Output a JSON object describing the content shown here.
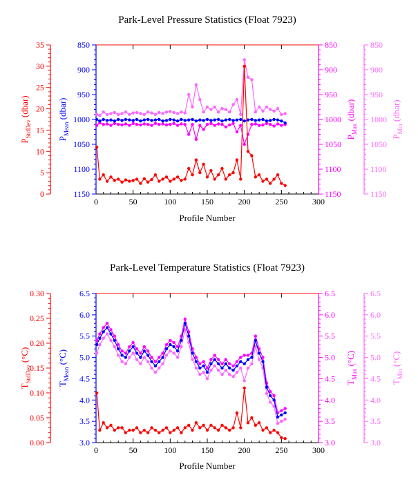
{
  "colors": {
    "stddev": "#ff0000",
    "mean": "#0000ff",
    "max": "#ff00ff",
    "min": "#ff66ff",
    "frame": "#000000"
  },
  "chart_data": [
    {
      "type": "line",
      "title": "Park-Level Pressure Statistics (Float 7923)",
      "xlabel": "Profile Number",
      "xlim": [
        0,
        300
      ],
      "xticks": [
        0,
        50,
        100,
        150,
        200,
        250,
        300
      ],
      "axes": {
        "stddev": {
          "label": "P",
          "sub": "StdDev",
          "unit": " (dbar)",
          "lim": [
            0,
            35
          ],
          "ticks": [
            0,
            5,
            10,
            15,
            20,
            25,
            30,
            35
          ],
          "inverted": false
        },
        "mean": {
          "label": "P",
          "sub": "Mean",
          "unit": " (dbar)",
          "lim": [
            850,
            1150
          ],
          "ticks": [
            850,
            900,
            950,
            1000,
            1050,
            1100,
            1150
          ],
          "inverted": true
        },
        "max": {
          "label": "P",
          "sub": "Max",
          "unit": " (dbar)",
          "lim": [
            850,
            1150
          ],
          "ticks": [
            850,
            900,
            950,
            1000,
            1050,
            1100,
            1150
          ],
          "inverted": true
        },
        "min": {
          "label": "P",
          "sub": "Min",
          "unit": " (dbar)",
          "lim": [
            850,
            1150
          ],
          "ticks": [
            850,
            900,
            950,
            1000,
            1050,
            1100,
            1150
          ],
          "inverted": true
        }
      },
      "x": [
        1,
        5,
        10,
        15,
        20,
        25,
        30,
        35,
        40,
        45,
        50,
        55,
        60,
        65,
        70,
        75,
        80,
        85,
        90,
        95,
        100,
        105,
        110,
        115,
        120,
        125,
        130,
        135,
        140,
        145,
        150,
        155,
        160,
        165,
        170,
        175,
        180,
        185,
        190,
        195,
        200,
        205,
        210,
        215,
        220,
        225,
        230,
        235,
        240,
        245,
        250,
        255
      ],
      "series": [
        {
          "key": "stddev",
          "values": [
            11,
            3.5,
            4.5,
            3.0,
            4.0,
            3.2,
            3.5,
            2.8,
            3.3,
            3.0,
            3.2,
            3.5,
            2.5,
            3.6,
            2.8,
            3.4,
            4.5,
            3.0,
            3.5,
            4.0,
            3.0,
            3.5,
            4.0,
            3.2,
            3.5,
            6.0,
            4.5,
            8.0,
            5.0,
            7.0,
            4.0,
            5.5,
            3.5,
            4.5,
            6.0,
            3.5,
            4.5,
            5.0,
            8.0,
            3.5,
            30.0,
            10.0,
            9.0,
            4.0,
            4.5,
            3.0,
            3.5,
            2.5,
            3.5,
            4.5,
            2.5,
            2.0
          ]
        },
        {
          "key": "mean",
          "values": [
            1000,
            1003,
            1000,
            1002,
            1001,
            1003,
            1000,
            1002,
            1000,
            1001,
            1002,
            1000,
            1003,
            1001,
            1000,
            1002,
            1001,
            1000,
            1003,
            1002,
            1000,
            1001,
            1003,
            1000,
            1002,
            1001,
            1000,
            1003,
            1001,
            1002,
            1000,
            1002,
            1001,
            1000,
            1003,
            1001,
            1000,
            1002,
            1001,
            1000,
            1003,
            1001,
            1000,
            1002,
            1001,
            1000,
            1003,
            1002,
            1000,
            1001,
            1003,
            1007
          ]
        },
        {
          "key": "max",
          "values": [
            1012,
            1007,
            1010,
            1009,
            1012,
            1008,
            1010,
            1011,
            1009,
            1012,
            1008,
            1010,
            1011,
            1009,
            1010,
            1012,
            1008,
            1010,
            1009,
            1011,
            1010,
            1008,
            1012,
            1009,
            1010,
            1030,
            1010,
            1040,
            1012,
            1020,
            1010,
            1008,
            1012,
            1009,
            1010,
            1015,
            1011,
            1008,
            1025,
            1012,
            1050,
            1030,
            1010,
            1009,
            1012,
            1011,
            1008,
            1010,
            1013,
            1009,
            1012,
            1010
          ]
        },
        {
          "key": "min",
          "values": [
            990,
            992,
            985,
            990,
            988,
            986,
            990,
            988,
            985,
            990,
            987,
            986,
            988,
            990,
            985,
            987,
            990,
            986,
            988,
            985,
            984,
            986,
            988,
            985,
            987,
            950,
            975,
            930,
            960,
            985,
            975,
            980,
            975,
            985,
            978,
            980,
            985,
            970,
            960,
            990,
            880,
            915,
            920,
            985,
            975,
            983,
            975,
            980,
            983,
            978,
            990,
            988
          ]
        }
      ]
    },
    {
      "type": "line",
      "title": "Park-Level Temperature Statistics (Float 7923)",
      "xlabel": "Profile Number",
      "xlim": [
        0,
        300
      ],
      "xticks": [
        0,
        50,
        100,
        150,
        200,
        250,
        300
      ],
      "axes": {
        "stddev": {
          "label": "T",
          "sub": "StdDev",
          "unit": " (°C)",
          "lim": [
            0,
            0.3
          ],
          "ticks": [
            "0.00",
            "0.05",
            "0.10",
            "0.15",
            "0.20",
            "0.25",
            "0.30"
          ],
          "inverted": false
        },
        "mean": {
          "label": "T",
          "sub": "Mean",
          "unit": " (°C)",
          "lim": [
            3.0,
            6.5
          ],
          "ticks": [
            "3.0",
            "3.5",
            "4.0",
            "4.5",
            "5.0",
            "5.5",
            "6.0",
            "6.5"
          ],
          "inverted": false
        },
        "max": {
          "label": "T",
          "sub": "Max",
          "unit": " (°C)",
          "lim": [
            3.0,
            6.5
          ],
          "ticks": [
            "3.0",
            "3.5",
            "4.0",
            "4.5",
            "5.0",
            "5.5",
            "6.0",
            "6.5"
          ],
          "inverted": false
        },
        "min": {
          "label": "T",
          "sub": "Min",
          "unit": " (°C)",
          "lim": [
            3.0,
            6.5
          ],
          "ticks": [
            "3.0",
            "3.5",
            "4.0",
            "4.5",
            "5.0",
            "5.5",
            "6.0",
            "6.5"
          ],
          "inverted": false
        }
      },
      "x": [
        1,
        5,
        10,
        15,
        20,
        25,
        30,
        35,
        40,
        45,
        50,
        55,
        60,
        65,
        70,
        75,
        80,
        85,
        90,
        95,
        100,
        105,
        110,
        115,
        120,
        125,
        130,
        135,
        140,
        145,
        150,
        155,
        160,
        165,
        170,
        175,
        180,
        185,
        190,
        195,
        200,
        205,
        210,
        215,
        220,
        225,
        230,
        235,
        240,
        245,
        250,
        255
      ],
      "series": [
        {
          "key": "stddev",
          "values": [
            0.1,
            0.025,
            0.04,
            0.03,
            0.035,
            0.025,
            0.03,
            0.03,
            0.02,
            0.025,
            0.025,
            0.03,
            0.02,
            0.025,
            0.02,
            0.03,
            0.025,
            0.02,
            0.025,
            0.03,
            0.02,
            0.025,
            0.03,
            0.02,
            0.03,
            0.035,
            0.025,
            0.04,
            0.03,
            0.035,
            0.025,
            0.035,
            0.03,
            0.025,
            0.035,
            0.03,
            0.025,
            0.03,
            0.06,
            0.03,
            0.11,
            0.04,
            0.05,
            0.035,
            0.04,
            0.025,
            0.03,
            0.02,
            0.025,
            0.02,
            0.01,
            0.008
          ]
        },
        {
          "key": "mean",
          "values": [
            5.3,
            5.45,
            5.6,
            5.7,
            5.55,
            5.4,
            5.2,
            5.05,
            5.0,
            5.15,
            5.25,
            5.1,
            5.0,
            5.15,
            5.05,
            4.9,
            4.8,
            4.9,
            5.0,
            5.2,
            5.3,
            5.25,
            5.15,
            5.4,
            5.8,
            5.5,
            5.1,
            4.9,
            4.75,
            4.8,
            4.65,
            4.85,
            4.95,
            4.85,
            4.75,
            4.85,
            4.75,
            4.7,
            4.8,
            4.9,
            4.85,
            4.95,
            5.0,
            5.4,
            5.1,
            4.9,
            4.3,
            4.1,
            4.0,
            3.6,
            3.65,
            3.7
          ]
        },
        {
          "key": "max",
          "values": [
            5.4,
            5.55,
            5.7,
            5.8,
            5.65,
            5.5,
            5.3,
            5.15,
            5.1,
            5.25,
            5.35,
            5.2,
            5.1,
            5.25,
            5.15,
            5.0,
            4.9,
            5.0,
            5.1,
            5.3,
            5.4,
            5.35,
            5.25,
            5.5,
            5.9,
            5.6,
            5.2,
            5.0,
            4.85,
            4.9,
            4.75,
            4.95,
            5.05,
            4.95,
            4.85,
            4.95,
            4.85,
            4.8,
            4.9,
            5.0,
            5.05,
            5.05,
            5.1,
            5.5,
            5.2,
            5.0,
            4.4,
            4.2,
            4.1,
            3.7,
            3.75,
            3.8
          ]
        },
        {
          "key": "min",
          "values": [
            5.1,
            5.3,
            5.45,
            5.55,
            5.4,
            5.25,
            5.05,
            4.9,
            4.85,
            5.0,
            5.1,
            4.95,
            4.85,
            5.0,
            4.9,
            4.75,
            4.65,
            4.75,
            4.85,
            5.05,
            5.15,
            5.1,
            5.0,
            5.25,
            5.65,
            5.35,
            4.95,
            4.75,
            4.6,
            4.65,
            4.5,
            4.7,
            4.8,
            4.7,
            4.6,
            4.7,
            4.6,
            4.55,
            4.65,
            4.75,
            4.45,
            4.75,
            4.85,
            5.25,
            4.95,
            4.75,
            4.15,
            3.95,
            3.85,
            3.45,
            3.5,
            3.55
          ]
        }
      ]
    }
  ]
}
